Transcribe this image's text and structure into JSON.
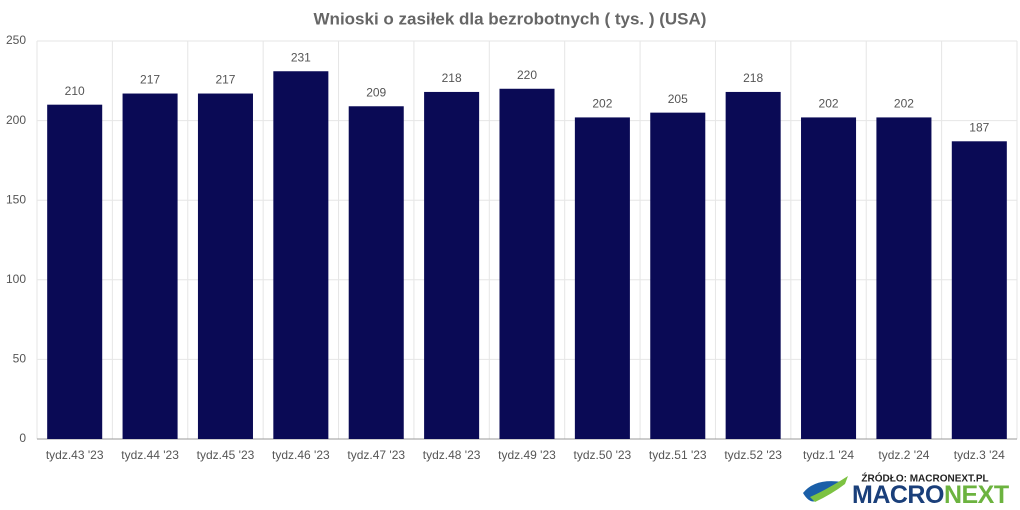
{
  "chart_data": {
    "type": "bar",
    "title": "Wnioski o zasiłek dla bezrobotnych ( tys. ) (USA)",
    "categories": [
      "tydz.43 '23",
      "tydz.44 '23",
      "tydz.45 '23",
      "tydz.46 '23",
      "tydz.47 '23",
      "tydz.48 '23",
      "tydz.49 '23",
      "tydz.50 '23",
      "tydz.51 '23",
      "tydz.52 '23",
      "tydz.1 '24",
      "tydz.2 '24",
      "tydz.3 '24"
    ],
    "values": [
      210,
      217,
      217,
      231,
      209,
      218,
      220,
      202,
      205,
      218,
      202,
      202,
      187
    ],
    "color": "#0a0a55",
    "ylim": [
      0,
      250
    ],
    "yticks": [
      0,
      50,
      100,
      150,
      200,
      250
    ],
    "grid": true
  },
  "source": "ŹRÓDŁO: MACRONEXT.PL",
  "logo": [
    "MACRO",
    "NEXT"
  ]
}
